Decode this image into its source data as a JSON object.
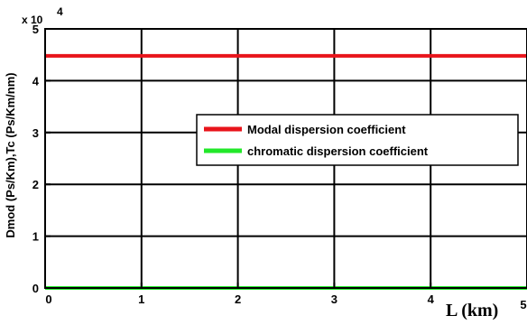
{
  "chart_data": {
    "type": "line",
    "ylabel": "Dmod (Ps/Km),Tc (Ps/Km/nm)",
    "xlabel": "L (km)",
    "xlim": [
      0,
      5
    ],
    "ylim": [
      0,
      50000
    ],
    "x_ticks": [
      "0",
      "1",
      "2",
      "3",
      "4",
      "5"
    ],
    "y_ticks": [
      "0",
      "1",
      "2",
      "3",
      "4",
      "5"
    ],
    "y_multiplier": {
      "base": "x 10",
      "exp": "4"
    },
    "grid": true,
    "legend_position": "center-right",
    "series": [
      {
        "name": "Modal dispersion coefficient",
        "color": "#e8141b",
        "x": [
          0,
          5
        ],
        "y": [
          44800,
          44800
        ]
      },
      {
        "name": "chromatic dispersion coefficient",
        "color": "#22e82a",
        "x": [
          0,
          5
        ],
        "y": [
          0,
          0
        ]
      }
    ]
  }
}
